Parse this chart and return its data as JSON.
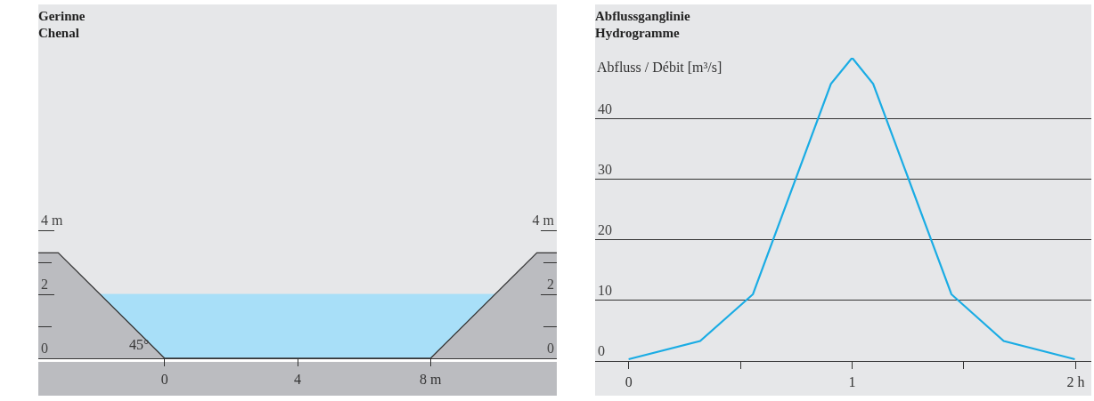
{
  "chart_data": [
    {
      "type": "area",
      "title": "Gerinne\nChenal",
      "series": [
        {
          "color": "#a8dff8",
          "x": [
            -2,
            10
          ],
          "values": [
            2,
            2
          ]
        },
        {
          "color": "#bbbcc0",
          "x": [
            -3.8,
            -3.2,
            0,
            8,
            11.2,
            11.8
          ],
          "values": [
            3.3,
            3.3,
            0,
            0,
            3.3,
            3.3
          ]
        }
      ],
      "xlim": [
        -3.8,
        11.8
      ],
      "ylim": [
        0,
        9.4
      ],
      "xticks": [
        0,
        4,
        {
          "value": 8,
          "label": "8 m"
        }
      ],
      "yticks": [
        0,
        {
          "value": 1,
          "label": null
        },
        2,
        {
          "value": 3,
          "label": null
        },
        {
          "value": 4,
          "label": "4 m"
        }
      ],
      "y2lim": [
        0,
        9.4
      ],
      "y2ticks": [
        0,
        {
          "value": 1,
          "label": null
        },
        2,
        {
          "value": 3,
          "label": null
        },
        {
          "value": 4,
          "label": "4 m"
        }
      ],
      "annotations": [
        "45°"
      ],
      "grid": false
    },
    {
      "type": "line",
      "title": "Abflussganglinie\nHydrogramme",
      "ylabel": "Abfluss / Débit [m³/s]",
      "x": [
        0,
        0.32,
        0.556,
        0.905,
        1,
        1.094,
        1.444,
        1.678,
        1.996
      ],
      "series": [
        {
          "color": "#1aace4",
          "values": [
            0.3,
            3.3,
            11,
            45.7,
            50,
            45.7,
            11,
            3.3,
            0.3
          ]
        }
      ],
      "xlim": [
        -0.15,
        2.07
      ],
      "ylim": [
        0,
        50
      ],
      "xticks": [
        0,
        {
          "value": 0.5,
          "label": null
        },
        1,
        {
          "value": 1.5,
          "label": null
        },
        {
          "value": 2,
          "label": "2 h"
        }
      ],
      "yticks": [
        0,
        10,
        20,
        30,
        40,
        {
          "value": 50,
          "label": null
        }
      ],
      "grid": "y",
      "marker": "none",
      "line_style": "solid"
    }
  ]
}
